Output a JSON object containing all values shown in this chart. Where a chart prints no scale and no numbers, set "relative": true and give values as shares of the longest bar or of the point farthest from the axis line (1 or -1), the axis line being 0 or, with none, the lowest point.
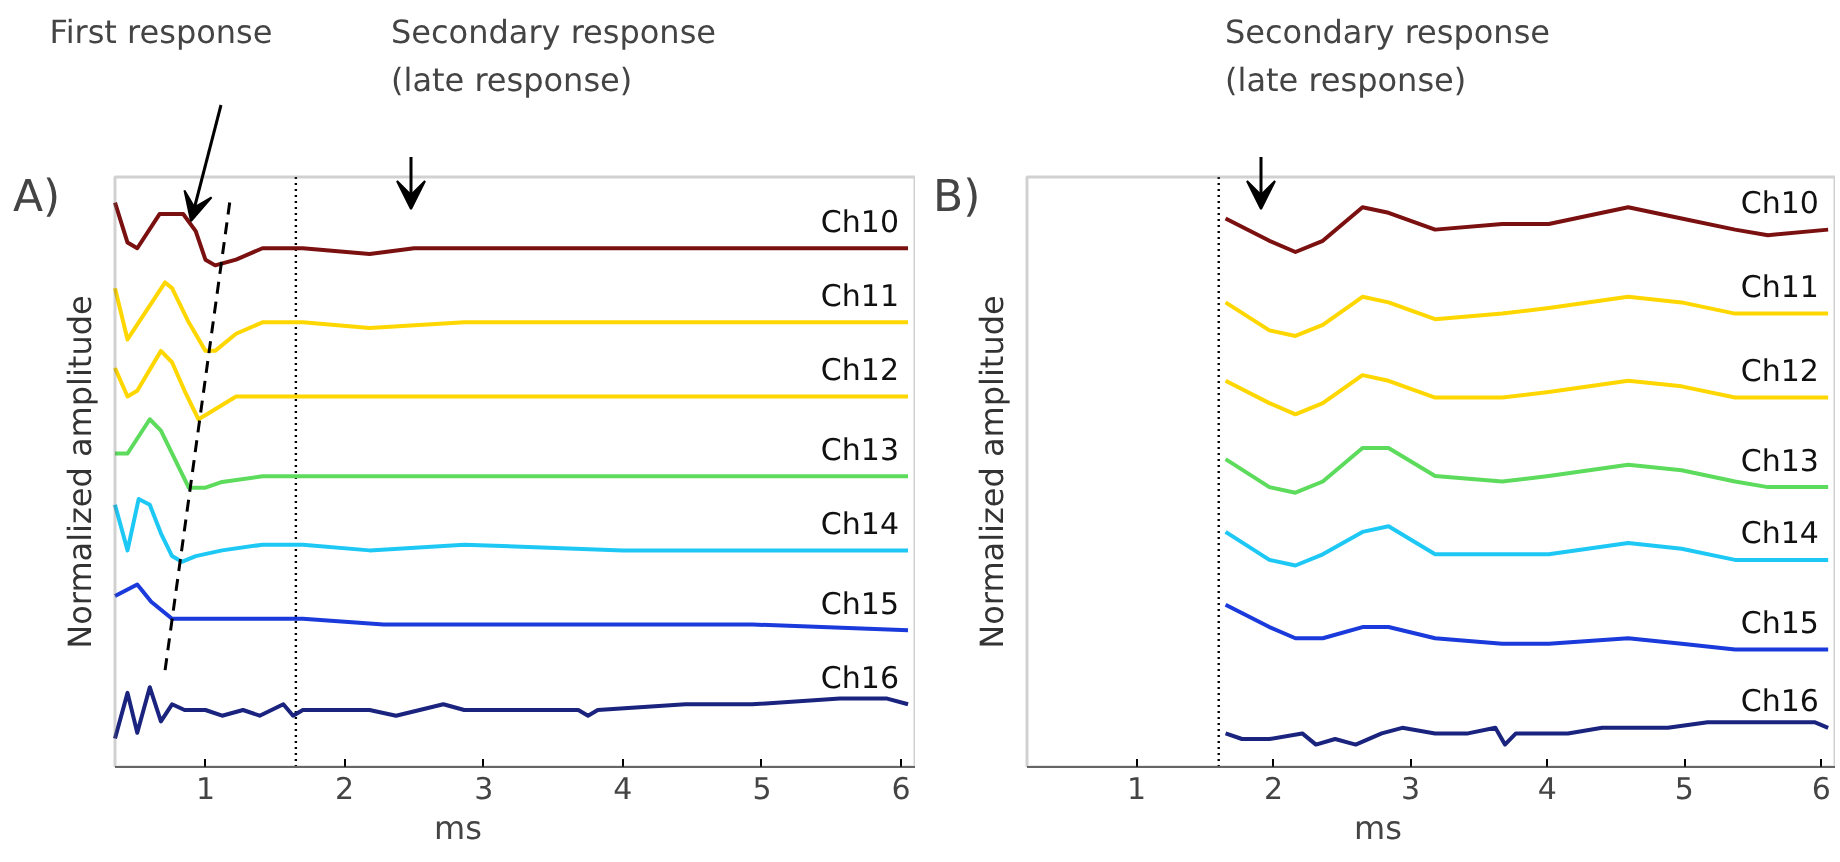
{
  "chart_data": [
    {
      "type": "line",
      "relative": true,
      "xlabel": "ms",
      "ylabel": "Normalized amplitude",
      "xlim": [
        0.35,
        6.1
      ],
      "xticks": [
        1,
        2,
        3,
        4,
        5,
        6
      ],
      "grid": false,
      "legend": false,
      "marker": "none",
      "line_style": "solid",
      "annotations": [
        "A)",
        "First response",
        "Secondary response\n(late response)"
      ],
      "ref_lines": [
        {
          "axis": "x",
          "value": 1.65,
          "label": null,
          "color": "#000000",
          "line_style": "dotted"
        }
      ],
      "series": [
        {
          "name": "Ch10",
          "color": "#7b1010",
          "x": [
            0.35,
            0.44,
            0.51,
            0.67,
            0.84,
            0.93,
            1.0,
            1.07,
            1.22,
            1.41,
            1.7,
            2.18,
            2.5,
            2.86,
            3.2,
            4.0,
            5.0,
            6.05
          ],
          "values": [
            0.99,
            0.92,
            0.91,
            0.97,
            0.97,
            0.94,
            0.89,
            0.88,
            0.89,
            0.91,
            0.91,
            0.9,
            0.91,
            0.91,
            0.91,
            0.91,
            0.91,
            0.91
          ]
        },
        {
          "name": "Ch11",
          "color": "#ffd700",
          "x": [
            0.35,
            0.44,
            0.71,
            0.76,
            0.88,
            1.0,
            1.07,
            1.22,
            1.41,
            1.7,
            2.18,
            2.86,
            3.5,
            4.5,
            6.05
          ],
          "values": [
            0.84,
            0.75,
            0.85,
            0.84,
            0.78,
            0.73,
            0.73,
            0.76,
            0.78,
            0.78,
            0.77,
            0.78,
            0.78,
            0.78,
            0.78
          ]
        },
        {
          "name": "Ch12",
          "color": "#ffd700",
          "x": [
            0.35,
            0.44,
            0.51,
            0.68,
            0.76,
            0.85,
            0.95,
            1.02,
            1.22,
            1.7,
            2.18,
            2.86,
            4.0,
            5.0,
            6.05
          ],
          "values": [
            0.7,
            0.65,
            0.66,
            0.73,
            0.71,
            0.66,
            0.61,
            0.62,
            0.65,
            0.65,
            0.65,
            0.65,
            0.65,
            0.65,
            0.65
          ]
        },
        {
          "name": "Ch13",
          "color": "#5ddb5d",
          "x": [
            0.35,
            0.44,
            0.6,
            0.68,
            0.78,
            0.88,
            1.0,
            1.12,
            1.41,
            1.7,
            2.18,
            2.86,
            4.0,
            5.0,
            6.05
          ],
          "values": [
            0.55,
            0.55,
            0.61,
            0.59,
            0.54,
            0.49,
            0.49,
            0.5,
            0.51,
            0.51,
            0.51,
            0.51,
            0.51,
            0.51,
            0.51
          ]
        },
        {
          "name": "Ch14",
          "color": "#1ec8f5",
          "x": [
            0.35,
            0.44,
            0.52,
            0.6,
            0.68,
            0.76,
            0.83,
            0.93,
            1.12,
            1.41,
            1.7,
            2.18,
            2.86,
            4.0,
            5.0,
            6.05
          ],
          "values": [
            0.46,
            0.38,
            0.47,
            0.46,
            0.41,
            0.37,
            0.36,
            0.37,
            0.38,
            0.39,
            0.39,
            0.38,
            0.39,
            0.38,
            0.38,
            0.38
          ]
        },
        {
          "name": "Ch15",
          "color": "#1a3adb",
          "x": [
            0.35,
            0.51,
            0.61,
            0.76,
            1.22,
            1.7,
            2.28,
            2.86,
            3.24,
            4.93,
            6.05
          ],
          "values": [
            0.3,
            0.32,
            0.29,
            0.26,
            0.26,
            0.26,
            0.25,
            0.25,
            0.25,
            0.25,
            0.24
          ]
        },
        {
          "name": "Ch16",
          "color": "#1a237e",
          "x": [
            0.35,
            0.44,
            0.51,
            0.6,
            0.68,
            0.76,
            0.85,
            1.0,
            1.12,
            1.27,
            1.39,
            1.56,
            1.63,
            1.7,
            1.84,
            2.18,
            2.37,
            2.71,
            2.86,
            3.0,
            3.68,
            3.75,
            3.82,
            4.45,
            4.93,
            5.56,
            5.9,
            6.05
          ],
          "values": [
            0.05,
            0.13,
            0.06,
            0.14,
            0.08,
            0.11,
            0.1,
            0.1,
            0.09,
            0.1,
            0.09,
            0.11,
            0.09,
            0.1,
            0.1,
            0.1,
            0.09,
            0.11,
            0.1,
            0.1,
            0.1,
            0.09,
            0.1,
            0.11,
            0.11,
            0.12,
            0.12,
            0.11
          ]
        },
        {
          "type": "line",
          "color": "#000000",
          "line_style": "dashed",
          "x": [
            0.71,
            1.18
          ],
          "values": [
            0.17,
            1.0
          ]
        }
      ]
    },
    {
      "type": "line",
      "relative": true,
      "xlabel": "ms",
      "ylabel": "Normalized amplitude",
      "xlim": [
        0.2,
        6.1
      ],
      "xticks": [
        1,
        2,
        3,
        4,
        5,
        6
      ],
      "grid": false,
      "legend": false,
      "marker": "none",
      "line_style": "solid",
      "annotations": [
        "B)",
        "Secondary response\n(late response)"
      ],
      "ref_lines": [
        {
          "axis": "x",
          "value": 1.6,
          "label": null,
          "color": "#000000",
          "line_style": "dotted"
        }
      ],
      "series": [
        {
          "name": "Ch10",
          "color": "#7b1010",
          "x": [
            1.65,
            1.97,
            2.16,
            2.36,
            2.65,
            2.84,
            3.18,
            3.67,
            4.01,
            4.59,
            4.98,
            5.37,
            5.61,
            6.05
          ],
          "values": [
            0.98,
            0.94,
            0.92,
            0.94,
            1.0,
            0.99,
            0.96,
            0.97,
            0.97,
            1.0,
            0.98,
            0.96,
            0.95,
            0.96
          ]
        },
        {
          "name": "Ch11",
          "color": "#ffd700",
          "x": [
            1.65,
            1.97,
            2.16,
            2.36,
            2.65,
            2.84,
            3.18,
            3.67,
            4.01,
            4.59,
            4.98,
            5.37,
            5.61,
            6.05
          ],
          "values": [
            0.83,
            0.78,
            0.77,
            0.79,
            0.84,
            0.83,
            0.8,
            0.81,
            0.82,
            0.84,
            0.83,
            0.81,
            0.81,
            0.81
          ]
        },
        {
          "name": "Ch12",
          "color": "#ffd700",
          "x": [
            1.65,
            1.97,
            2.16,
            2.36,
            2.65,
            2.84,
            3.18,
            3.67,
            4.01,
            4.59,
            4.98,
            5.37,
            5.61,
            6.05
          ],
          "values": [
            0.69,
            0.65,
            0.63,
            0.65,
            0.7,
            0.69,
            0.66,
            0.66,
            0.67,
            0.69,
            0.68,
            0.66,
            0.66,
            0.66
          ]
        },
        {
          "name": "Ch13",
          "color": "#5ddb5d",
          "x": [
            1.65,
            1.97,
            2.16,
            2.36,
            2.65,
            2.84,
            3.18,
            3.67,
            4.01,
            4.59,
            4.98,
            5.37,
            5.61,
            6.05
          ],
          "values": [
            0.55,
            0.5,
            0.49,
            0.51,
            0.57,
            0.57,
            0.52,
            0.51,
            0.52,
            0.54,
            0.53,
            0.51,
            0.5,
            0.5
          ]
        },
        {
          "name": "Ch14",
          "color": "#1ec8f5",
          "x": [
            1.65,
            1.97,
            2.16,
            2.36,
            2.65,
            2.84,
            3.18,
            3.67,
            4.01,
            4.59,
            4.98,
            5.37,
            5.61,
            6.05
          ],
          "values": [
            0.42,
            0.37,
            0.36,
            0.38,
            0.42,
            0.43,
            0.38,
            0.38,
            0.38,
            0.4,
            0.39,
            0.37,
            0.37,
            0.37
          ]
        },
        {
          "name": "Ch15",
          "color": "#1a3adb",
          "x": [
            1.65,
            1.97,
            2.16,
            2.36,
            2.65,
            2.84,
            3.18,
            3.67,
            4.01,
            4.59,
            4.98,
            5.37,
            5.61,
            6.05
          ],
          "values": [
            0.29,
            0.25,
            0.23,
            0.23,
            0.25,
            0.25,
            0.23,
            0.22,
            0.22,
            0.23,
            0.22,
            0.21,
            0.21,
            0.21
          ]
        },
        {
          "name": "Ch16",
          "color": "#1a237e",
          "x": [
            1.65,
            1.77,
            1.97,
            2.21,
            2.31,
            2.45,
            2.6,
            2.79,
            2.94,
            3.18,
            3.42,
            3.62,
            3.69,
            3.77,
            4.15,
            4.4,
            4.59,
            4.88,
            5.17,
            5.47,
            5.76,
            5.95,
            6.05
          ],
          "values": [
            0.06,
            0.05,
            0.05,
            0.06,
            0.04,
            0.05,
            0.04,
            0.06,
            0.07,
            0.06,
            0.06,
            0.07,
            0.04,
            0.06,
            0.06,
            0.07,
            0.07,
            0.07,
            0.08,
            0.08,
            0.08,
            0.08,
            0.07
          ]
        }
      ]
    }
  ]
}
